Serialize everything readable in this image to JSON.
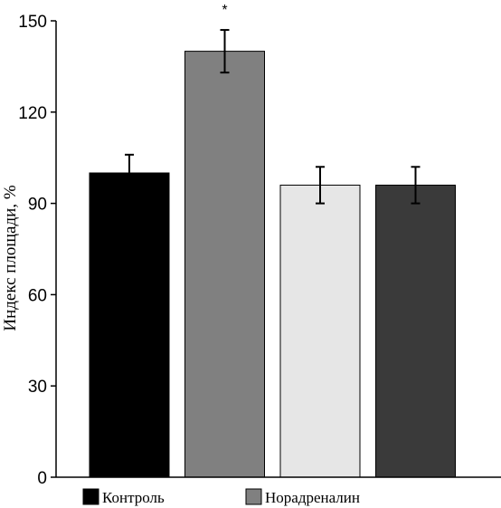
{
  "chart_data": {
    "type": "bar",
    "categories": [
      "",
      "",
      "",
      ""
    ],
    "values": [
      100,
      140,
      96,
      96
    ],
    "errors": [
      6,
      7,
      6,
      6
    ],
    "colors": [
      "#000000",
      "#808080",
      "#e6e6e6",
      "#3a3a3a"
    ],
    "annotations": [
      "",
      "*",
      "",
      ""
    ],
    "ylabel": "Индекс площади, %",
    "xlabel": "",
    "ylim": [
      0,
      150
    ],
    "yticks": [
      0,
      30,
      60,
      90,
      120,
      150
    ],
    "grid": false,
    "legend_position": "bottom-left",
    "legend": [
      {
        "label": "Контроль",
        "color": "#000000"
      },
      {
        "label": "Норадреналин",
        "color": "#808080"
      }
    ]
  }
}
